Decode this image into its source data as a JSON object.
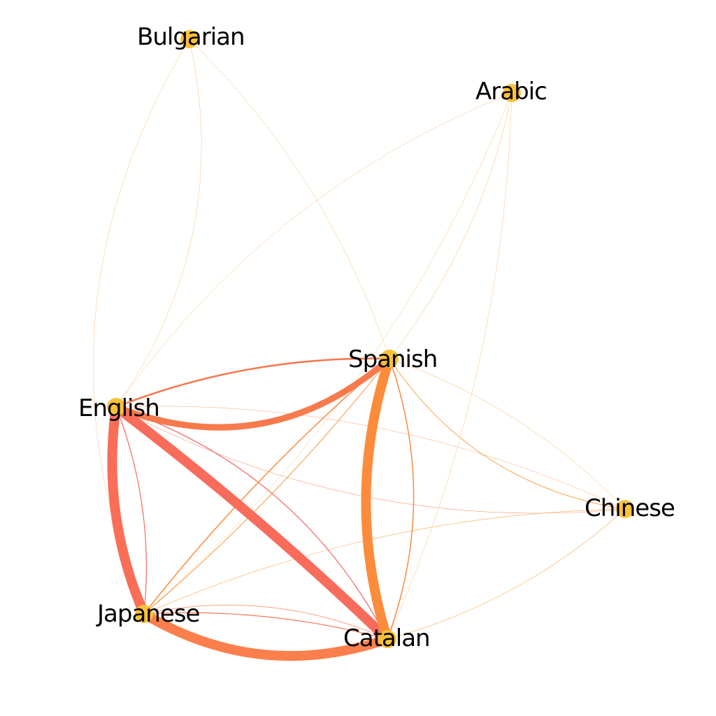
{
  "diagram": {
    "type": "network-graph",
    "background": "#ffffff",
    "node_color": "#fbc138",
    "nodes": [
      {
        "id": "bulgarian",
        "label": "Bulgarian"
      },
      {
        "id": "arabic",
        "label": "Arabic"
      },
      {
        "id": "spanish",
        "label": "Spanish"
      },
      {
        "id": "english",
        "label": "English"
      },
      {
        "id": "chinese",
        "label": "Chinese"
      },
      {
        "id": "japanese",
        "label": "Japanese"
      },
      {
        "id": "catalan",
        "label": "Catalan"
      }
    ],
    "edges": [
      {
        "source": "english",
        "target": "spanish",
        "weight": 9,
        "color": "#f77a4c"
      },
      {
        "source": "spanish",
        "target": "english",
        "weight": 2.5,
        "color": "#f7764c"
      },
      {
        "source": "english",
        "target": "catalan",
        "weight": 14,
        "color": "#f96b5b"
      },
      {
        "source": "english",
        "target": "japanese",
        "weight": 14,
        "color": "#fa6e58"
      },
      {
        "source": "japanese",
        "target": "english",
        "weight": 1.2,
        "color": "#f9685a"
      },
      {
        "source": "spanish",
        "target": "catalan",
        "weight": 14,
        "color": "#fc8c3c"
      },
      {
        "source": "catalan",
        "target": "spanish",
        "weight": 1.5,
        "color": "#f98a45"
      },
      {
        "source": "japanese",
        "target": "catalan",
        "weight": 14,
        "color": "#fb7f4c"
      },
      {
        "source": "catalan",
        "target": "japanese",
        "weight": 1.2,
        "color": "#f87b58"
      },
      {
        "source": "catalan",
        "target": "japanese",
        "weight": 0.8,
        "color": "#f98358"
      },
      {
        "source": "english",
        "target": "catalan",
        "weight": 1.2,
        "color": "#f4605c"
      },
      {
        "source": "japanese",
        "target": "spanish",
        "weight": 1.5,
        "color": "#f98c3c"
      },
      {
        "source": "spanish",
        "target": "japanese",
        "weight": 1,
        "color": "#f99440"
      },
      {
        "source": "english",
        "target": "chinese",
        "weight": 0.6,
        "color": "#f79a72"
      },
      {
        "source": "chinese",
        "target": "english",
        "weight": 0.5,
        "color": "#f8a27c"
      },
      {
        "source": "spanish",
        "target": "chinese",
        "weight": 1,
        "color": "#f9a44a"
      },
      {
        "source": "chinese",
        "target": "spanish",
        "weight": 0.5,
        "color": "#fbb35a"
      },
      {
        "source": "catalan",
        "target": "chinese",
        "weight": 0.6,
        "color": "#f8a650"
      },
      {
        "source": "chinese",
        "target": "japanese",
        "weight": 0.6,
        "color": "#f9a84e"
      },
      {
        "source": "bulgarian",
        "target": "english",
        "weight": 0.5,
        "color": "#fbbf7a"
      },
      {
        "source": "bulgarian",
        "target": "spanish",
        "weight": 0.5,
        "color": "#fbc07a"
      },
      {
        "source": "bulgarian",
        "target": "japanese",
        "weight": 0.5,
        "color": "#fbc27c"
      },
      {
        "source": "arabic",
        "target": "english",
        "weight": 0.5,
        "color": "#fbbf7a"
      },
      {
        "source": "arabic",
        "target": "spanish",
        "weight": 0.5,
        "color": "#fbba6a"
      },
      {
        "source": "arabic",
        "target": "catalan",
        "weight": 0.5,
        "color": "#fbc07a"
      },
      {
        "source": "arabic",
        "target": "japanese",
        "weight": 0.5,
        "color": "#fbc27a"
      }
    ]
  }
}
